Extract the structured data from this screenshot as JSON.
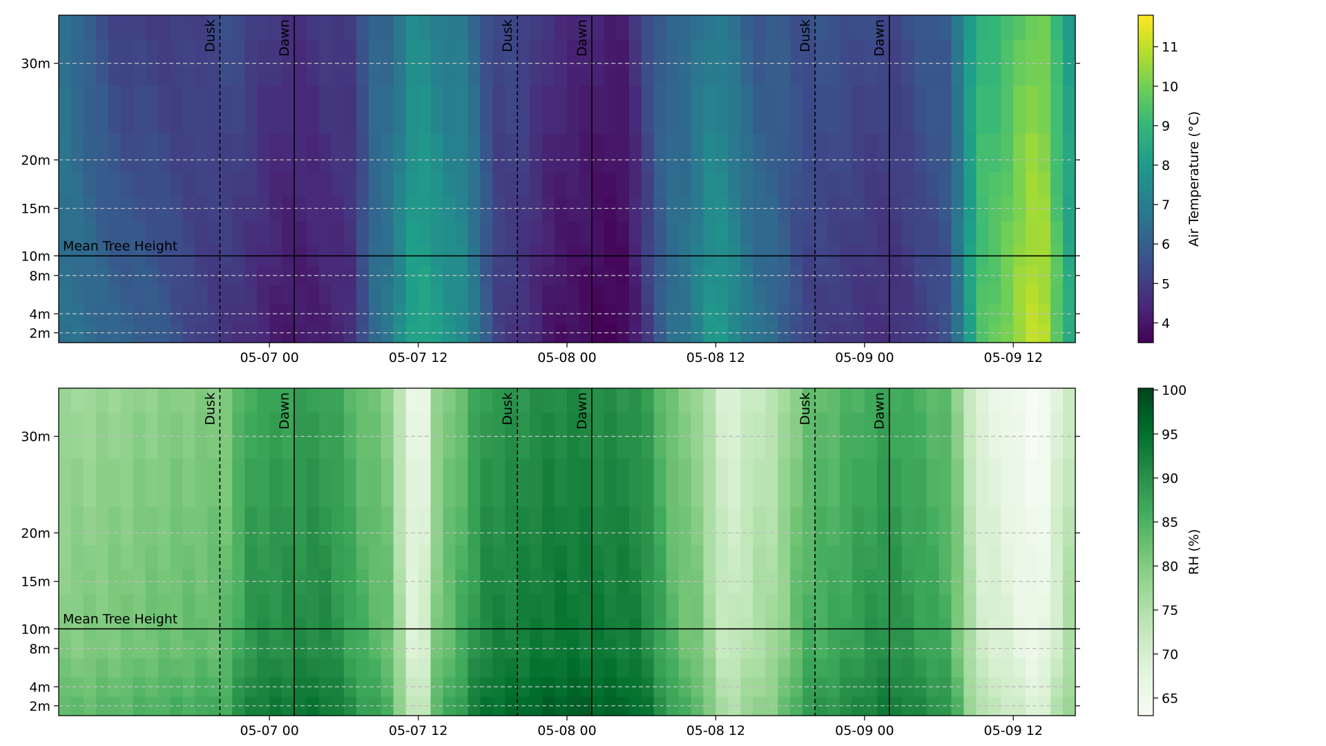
{
  "chart_data": [
    {
      "type": "heatmap",
      "colormap": "viridis",
      "colorbar": {
        "label": "Air Temperature (°C)",
        "range": [
          3.5,
          11.8
        ],
        "ticks": [
          "4",
          "5",
          "6",
          "7",
          "8",
          "9",
          "10",
          "11"
        ]
      },
      "x_range": [
        "2024-05-06 07:00",
        "2024-05-09 17:00"
      ],
      "x_ticks": [
        {
          "value": "2024-05-07 00:00",
          "label": "05-07 00"
        },
        {
          "value": "2024-05-07 12:00",
          "label": "05-07 12"
        },
        {
          "value": "2024-05-08 00:00",
          "label": "05-08 00"
        },
        {
          "value": "2024-05-08 12:00",
          "label": "05-08 12"
        },
        {
          "value": "2024-05-09 00:00",
          "label": "05-09 00"
        },
        {
          "value": "2024-05-09 12:00",
          "label": "05-09 12"
        }
      ],
      "y_ticks": [
        "2m",
        "4m",
        "8m",
        "10m",
        "15m",
        "20m",
        "30m"
      ],
      "heights": [
        "2m",
        "4m",
        "6m",
        "8m",
        "10m",
        "12m",
        "15m",
        "17m",
        "20m",
        "25m",
        "30m",
        "35m"
      ],
      "mean_tree_height": {
        "label": "Mean Tree Height",
        "height": "10m"
      },
      "events": [
        {
          "type": "dusk",
          "label": "Dusk",
          "time": "2024-05-06 20:00"
        },
        {
          "type": "dawn",
          "label": "Dawn",
          "time": "2024-05-07 02:00"
        },
        {
          "type": "dusk",
          "label": "Dusk",
          "time": "2024-05-07 20:00"
        },
        {
          "type": "dawn",
          "label": "Dawn",
          "time": "2024-05-08 02:00"
        },
        {
          "type": "dusk",
          "label": "Dusk",
          "time": "2024-05-08 20:00"
        },
        {
          "type": "dawn",
          "label": "Dawn",
          "time": "2024-05-09 02:00"
        }
      ],
      "keyframes": [
        {
          "time": "2024-05-06 07:00",
          "value": 6.6
        },
        {
          "time": "2024-05-06 13:00",
          "value": 5.8
        },
        {
          "time": "2024-05-06 20:00",
          "value": 5.0
        },
        {
          "time": "2024-05-07 02:00",
          "value": 4.2
        },
        {
          "time": "2024-05-07 06:00",
          "value": 4.5
        },
        {
          "time": "2024-05-07 09:00",
          "value": 6.5
        },
        {
          "time": "2024-05-07 12:00",
          "value": 8.2
        },
        {
          "time": "2024-05-07 15:00",
          "value": 7.5
        },
        {
          "time": "2024-05-07 19:00",
          "value": 5.0
        },
        {
          "time": "2024-05-08 00:00",
          "value": 4.0
        },
        {
          "time": "2024-05-08 04:00",
          "value": 3.7
        },
        {
          "time": "2024-05-08 09:00",
          "value": 6.5
        },
        {
          "time": "2024-05-08 12:00",
          "value": 7.7
        },
        {
          "time": "2024-05-08 16:00",
          "value": 6.3
        },
        {
          "time": "2024-05-08 20:00",
          "value": 5.2
        },
        {
          "time": "2024-05-09 02:00",
          "value": 4.8
        },
        {
          "time": "2024-05-09 06:00",
          "value": 5.4
        },
        {
          "time": "2024-05-09 10:00",
          "value": 9.5
        },
        {
          "time": "2024-05-09 14:00",
          "value": 10.8
        },
        {
          "time": "2024-05-09 17:00",
          "value": 8.3
        }
      ]
    },
    {
      "type": "heatmap",
      "colormap": "Greens",
      "colorbar": {
        "label": "RH (%)",
        "range": [
          63,
          100.2
        ],
        "ticks": [
          "65",
          "70",
          "75",
          "80",
          "85",
          "90",
          "95",
          "100"
        ]
      },
      "x_range": [
        "2024-05-06 07:00",
        "2024-05-09 17:00"
      ],
      "x_ticks": [
        {
          "value": "2024-05-07 00:00",
          "label": "05-07 00"
        },
        {
          "value": "2024-05-07 12:00",
          "label": "05-07 12"
        },
        {
          "value": "2024-05-08 00:00",
          "label": "05-08 00"
        },
        {
          "value": "2024-05-08 12:00",
          "label": "05-08 12"
        },
        {
          "value": "2024-05-09 00:00",
          "label": "05-09 00"
        },
        {
          "value": "2024-05-09 12:00",
          "label": "05-09 12"
        }
      ],
      "y_ticks": [
        "2m",
        "4m",
        "8m",
        "10m",
        "15m",
        "20m",
        "30m"
      ],
      "heights": [
        "2m",
        "4m",
        "6m",
        "8m",
        "10m",
        "12m",
        "15m",
        "17m",
        "20m",
        "25m",
        "30m",
        "35m"
      ],
      "mean_tree_height": {
        "label": "Mean Tree Height",
        "height": "10m"
      },
      "events": [
        {
          "type": "dusk",
          "label": "Dusk",
          "time": "2024-05-06 20:00"
        },
        {
          "type": "dawn",
          "label": "Dawn",
          "time": "2024-05-07 02:00"
        },
        {
          "type": "dusk",
          "label": "Dusk",
          "time": "2024-05-07 20:00"
        },
        {
          "type": "dawn",
          "label": "Dawn",
          "time": "2024-05-08 02:00"
        },
        {
          "type": "dusk",
          "label": "Dusk",
          "time": "2024-05-08 20:00"
        },
        {
          "type": "dawn",
          "label": "Dawn",
          "time": "2024-05-09 02:00"
        }
      ],
      "keyframes": [
        {
          "time": "2024-05-06 07:00",
          "value": 80
        },
        {
          "time": "2024-05-06 20:00",
          "value": 83
        },
        {
          "time": "2024-05-06 23:00",
          "value": 90
        },
        {
          "time": "2024-05-07 04:00",
          "value": 91
        },
        {
          "time": "2024-05-07 09:00",
          "value": 84
        },
        {
          "time": "2024-05-07 12:00",
          "value": 68
        },
        {
          "time": "2024-05-07 14:00",
          "value": 83
        },
        {
          "time": "2024-05-07 18:00",
          "value": 92
        },
        {
          "time": "2024-05-08 00:00",
          "value": 94
        },
        {
          "time": "2024-05-08 05:00",
          "value": 93
        },
        {
          "time": "2024-05-08 10:00",
          "value": 82
        },
        {
          "time": "2024-05-08 13:00",
          "value": 72
        },
        {
          "time": "2024-05-08 16:00",
          "value": 76
        },
        {
          "time": "2024-05-08 20:00",
          "value": 86
        },
        {
          "time": "2024-05-09 02:00",
          "value": 90
        },
        {
          "time": "2024-05-09 06:00",
          "value": 87
        },
        {
          "time": "2024-05-09 10:00",
          "value": 70
        },
        {
          "time": "2024-05-09 14:00",
          "value": 66
        },
        {
          "time": "2024-05-09 17:00",
          "value": 76
        }
      ]
    }
  ]
}
